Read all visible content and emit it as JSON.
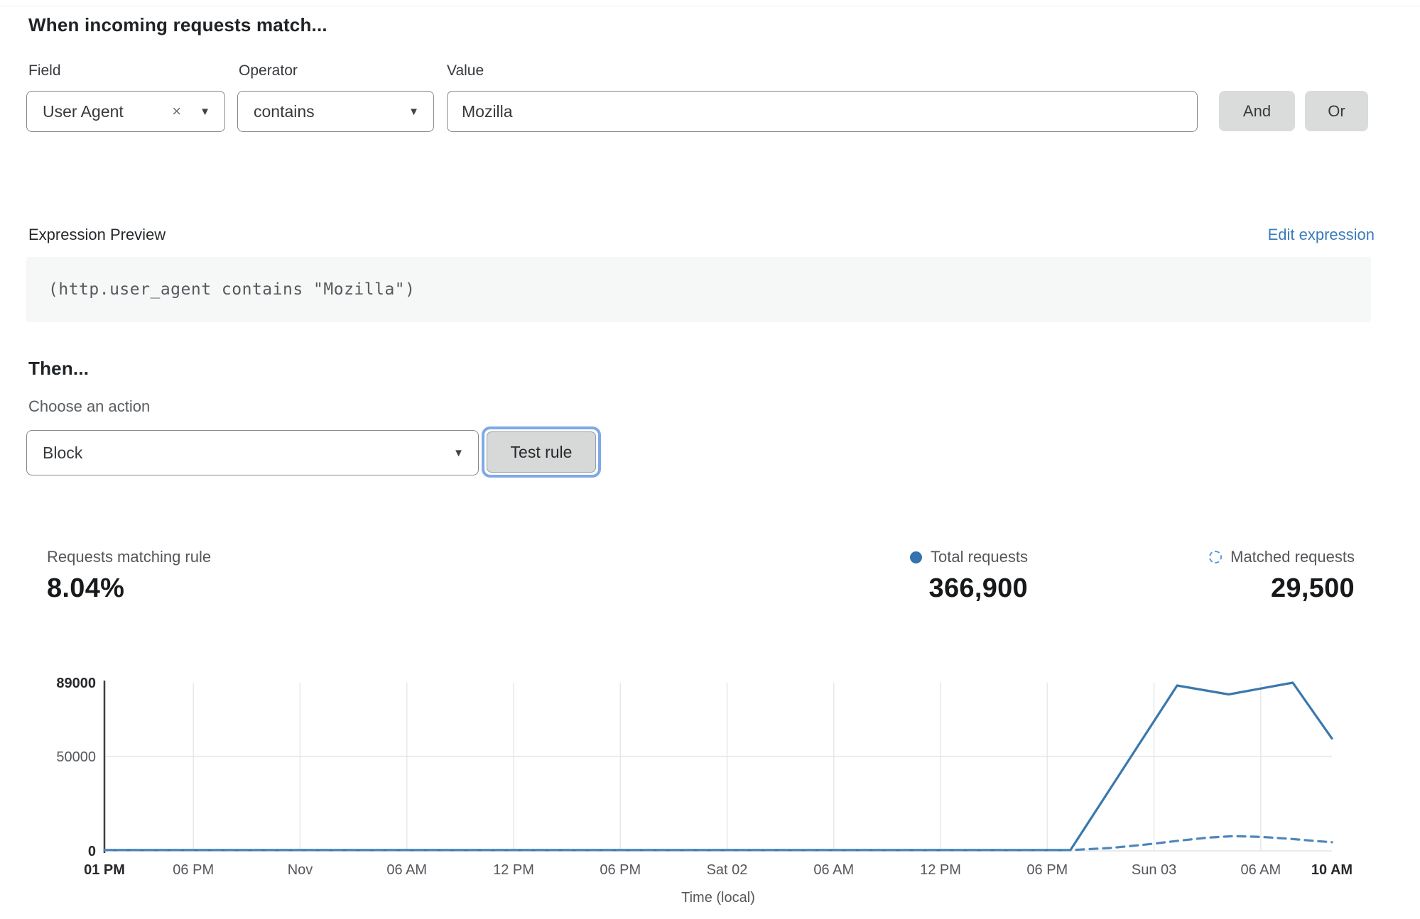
{
  "header": {
    "title": "When incoming requests match..."
  },
  "rule_builder": {
    "field_label": "Field",
    "operator_label": "Operator",
    "value_label": "Value",
    "field_value": "User Agent",
    "operator_value": "contains",
    "value_value": "Mozilla",
    "clear_icon": "×",
    "caret_icon": "▼",
    "and_label": "And",
    "or_label": "Or"
  },
  "expression": {
    "label": "Expression Preview",
    "edit_link": "Edit expression",
    "code": "(http.user_agent contains \"Mozilla\")"
  },
  "action": {
    "title": "Then...",
    "choose_label": "Choose an action",
    "action_value": "Block",
    "caret_icon": "▼",
    "test_button": "Test rule"
  },
  "stats": {
    "matching": {
      "label": "Requests matching rule",
      "value": "8.04%"
    },
    "total": {
      "label": "Total requests",
      "value": "366,900",
      "color": "#3573ae"
    },
    "matched": {
      "label": "Matched requests",
      "value": "29,500",
      "color": "#5b9bd5"
    }
  },
  "chart_data": {
    "type": "line",
    "title": "",
    "xlabel": "Time (local)",
    "ylabel": "",
    "ylim": [
      0,
      89000
    ],
    "grid": true,
    "x_unit": "hours from Thu Oct 31 1:00 PM local",
    "x_range_hours": [
      0,
      69
    ],
    "y_ticks": [
      {
        "value": 89000,
        "label": "89000",
        "bold": true
      },
      {
        "value": 50000,
        "label": "50000",
        "bold": false
      },
      {
        "value": 0,
        "label": "0",
        "bold": true
      }
    ],
    "x_ticks": [
      {
        "h": 0,
        "label": "01 PM",
        "bold": true
      },
      {
        "h": 5,
        "label": "06 PM",
        "bold": false
      },
      {
        "h": 11,
        "label": "Nov",
        "bold": false
      },
      {
        "h": 17,
        "label": "06 AM",
        "bold": false
      },
      {
        "h": 23,
        "label": "12 PM",
        "bold": false
      },
      {
        "h": 29,
        "label": "06 PM",
        "bold": false
      },
      {
        "h": 35,
        "label": "Sat 02",
        "bold": false
      },
      {
        "h": 41,
        "label": "06 AM",
        "bold": false
      },
      {
        "h": 47,
        "label": "12 PM",
        "bold": false
      },
      {
        "h": 53,
        "label": "06 PM",
        "bold": false
      },
      {
        "h": 59,
        "label": "Sun 03",
        "bold": false
      },
      {
        "h": 65,
        "label": "06 AM",
        "bold": false
      },
      {
        "h": 69,
        "label": "10 AM",
        "bold": true
      }
    ],
    "series": [
      {
        "name": "Total requests",
        "style": "solid",
        "color": "#3a78ad",
        "points": [
          [
            0,
            400
          ],
          [
            54.3,
            400
          ],
          [
            60.3,
            87500
          ],
          [
            63.2,
            82800
          ],
          [
            66.8,
            89000
          ],
          [
            69,
            59500
          ]
        ]
      },
      {
        "name": "Matched requests",
        "style": "dashed",
        "color": "#4d86bb",
        "points": [
          [
            0,
            400
          ],
          [
            54.3,
            400
          ],
          [
            56.5,
            1500
          ],
          [
            58.5,
            3300
          ],
          [
            60.5,
            5500
          ],
          [
            62,
            7000
          ],
          [
            63.5,
            7800
          ],
          [
            65,
            7400
          ],
          [
            66.5,
            6500
          ],
          [
            68,
            5300
          ],
          [
            69,
            4600
          ]
        ]
      }
    ],
    "legend_position": "above-right"
  }
}
